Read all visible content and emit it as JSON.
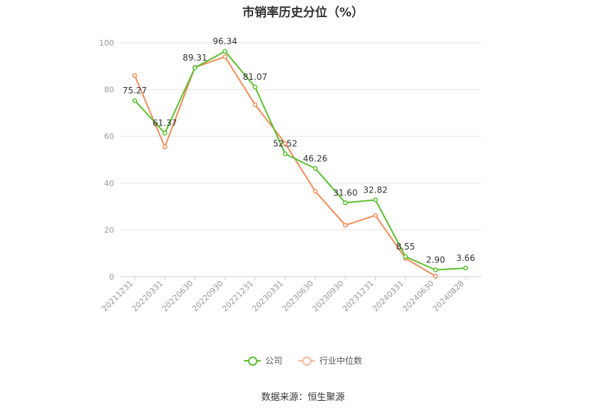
{
  "chart_data": {
    "type": "line",
    "title": "市销率历史分位（%）",
    "categories": [
      "20211231",
      "20220331",
      "20220630",
      "20220930",
      "20221231",
      "20230331",
      "20230630",
      "20230930",
      "20231231",
      "20240331",
      "20240630",
      "20240828"
    ],
    "series": [
      {
        "name": "公司",
        "color": "#5ac02f",
        "values": [
          75.27,
          61.37,
          89.31,
          96.34,
          81.07,
          52.52,
          46.26,
          31.6,
          32.82,
          8.55,
          2.9,
          3.66
        ],
        "labels": [
          "75.27",
          "61.37",
          "89.31",
          "96.34",
          "81.07",
          "52.52",
          "46.26",
          "31.60",
          "32.82",
          "8.55",
          "2.90",
          "3.66"
        ]
      },
      {
        "name": "行业中位数",
        "color": "#f08c5a",
        "values": [
          86,
          55.5,
          89.5,
          94,
          73.5,
          57,
          36.5,
          22,
          26.2,
          7.8,
          0.2,
          null
        ]
      }
    ],
    "ylim": [
      0,
      100
    ],
    "yticks": [
      0,
      20,
      40,
      60,
      80,
      100
    ],
    "grid": true,
    "legend": "bottom-center"
  },
  "source": "数据来源：恒生聚源"
}
